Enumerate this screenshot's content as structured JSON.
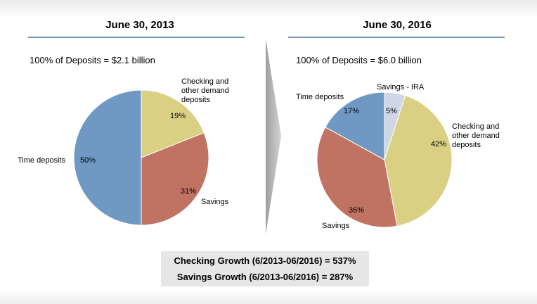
{
  "chart_data": [
    {
      "type": "pie",
      "title": "June 30, 2013",
      "subtitle": "100% of Deposits = $2.1 billion",
      "slices": [
        {
          "label": "Checking and other demand deposits",
          "value": 19,
          "value_label": "19%",
          "color": "#d9d083"
        },
        {
          "label": "Savings",
          "value": 31,
          "value_label": "31%",
          "color": "#c07363"
        },
        {
          "label": "Time deposits",
          "value": 50,
          "value_label": "50%",
          "color": "#6f98c3"
        }
      ]
    },
    {
      "type": "pie",
      "title": "June 30, 2016",
      "subtitle": "100% of Deposits = $6.0 billion",
      "slices": [
        {
          "label": "Savings - IRA",
          "value": 5,
          "value_label": "5%",
          "color": "#cfd7e6"
        },
        {
          "label": "Checking and other demand deposits",
          "value": 42,
          "value_label": "42%",
          "color": "#d9d083"
        },
        {
          "label": "Savings",
          "value": 36,
          "value_label": "36%",
          "color": "#c07363"
        },
        {
          "label": "Time deposits",
          "value": 17,
          "value_label": "17%",
          "color": "#6f98c3"
        }
      ]
    }
  ],
  "growth": {
    "checking": "Checking Growth (6/2013-06/2016) = 537%",
    "savings": "Savings Growth (6/2013-06/2016) = 287%"
  },
  "colors": {
    "rule": "#7a93b5",
    "arrow": "#bdbdbd",
    "box": "#e6e6e6"
  }
}
